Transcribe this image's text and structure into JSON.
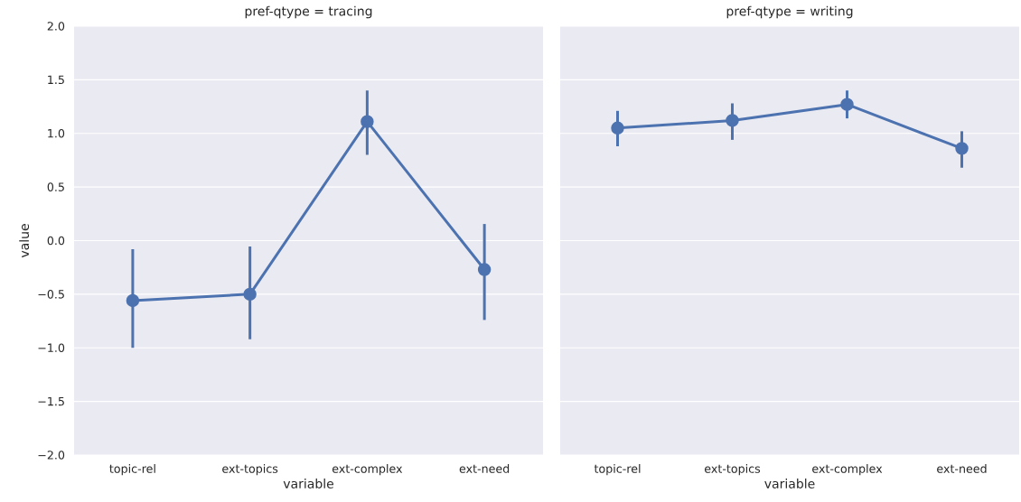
{
  "chart_data": [
    {
      "type": "line",
      "title": "pref-qtype = tracing",
      "xlabel": "variable",
      "ylabel": "value",
      "categories": [
        "topic-rel",
        "ext-topics",
        "ext-complex",
        "ext-need"
      ],
      "values": [
        -0.56,
        -0.5,
        1.11,
        -0.27
      ],
      "errors": [
        [
          -1.0,
          -0.08
        ],
        [
          -0.92,
          -0.055
        ],
        [
          0.8,
          1.4
        ],
        [
          -0.74,
          0.155
        ]
      ],
      "color": "#4c72b0",
      "ylim": [
        -2.0,
        2.0
      ],
      "yticks": [
        {
          "value": -2.0,
          "label": "−2.0"
        },
        {
          "value": -1.5,
          "label": "−1.5"
        },
        {
          "value": -1.0,
          "label": "−1.0"
        },
        {
          "value": -0.5,
          "label": "−0.5"
        },
        {
          "value": 0.0,
          "label": "0.0"
        },
        {
          "value": 0.5,
          "label": "0.5"
        },
        {
          "value": 1.0,
          "label": "1.0"
        },
        {
          "value": 1.5,
          "label": "1.5"
        },
        {
          "value": 2.0,
          "label": "2.0"
        }
      ],
      "grid": "y",
      "marker": "circle"
    },
    {
      "type": "line",
      "title": "pref-qtype = writing",
      "xlabel": "variable",
      "categories": [
        "topic-rel",
        "ext-topics",
        "ext-complex",
        "ext-need"
      ],
      "values": [
        1.05,
        1.12,
        1.27,
        0.86
      ],
      "errors": [
        [
          0.88,
          1.21
        ],
        [
          0.94,
          1.28
        ],
        [
          1.14,
          1.4
        ],
        [
          0.68,
          1.02
        ]
      ],
      "color": "#4c72b0",
      "ylim": [
        -2.0,
        2.0
      ],
      "yticks": [
        -2.0,
        -1.5,
        -1.0,
        -0.5,
        0.0,
        0.5,
        1.0,
        1.5,
        2.0
      ],
      "grid": "y",
      "marker": "circle",
      "tick_labels": "x"
    }
  ]
}
